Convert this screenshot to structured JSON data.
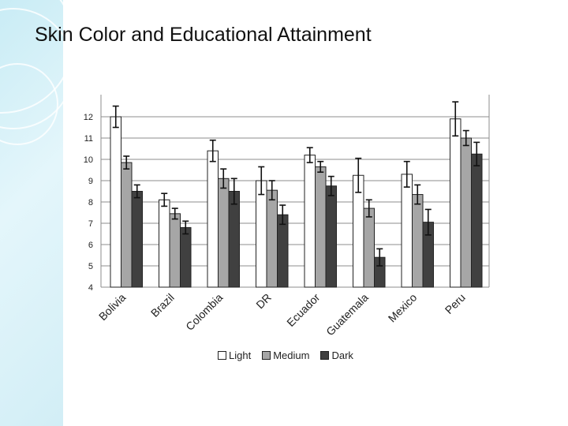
{
  "title": "Skin Color and Educational Attainment",
  "chart_data": {
    "type": "bar",
    "title": "",
    "xlabel": "",
    "ylabel": "",
    "ylim": [
      4,
      12
    ],
    "yticks": [
      "4",
      "5",
      "6",
      "7",
      "8",
      "9",
      "10",
      "11",
      "12"
    ],
    "grid": true,
    "error_bars": true,
    "legend_position": "bottom",
    "categories": [
      "Bolivia",
      "Brazil",
      "Colombia",
      "DR",
      "Ecuador",
      "Guatemala",
      "Mexico",
      "Peru"
    ],
    "series": [
      {
        "name": "Light",
        "color": "#ffffff",
        "values": [
          12.0,
          8.1,
          10.4,
          9.0,
          10.2,
          9.25,
          9.3,
          11.9
        ],
        "err": [
          0.5,
          0.3,
          0.5,
          0.65,
          0.35,
          0.8,
          0.6,
          0.8
        ]
      },
      {
        "name": "Medium",
        "color": "#a6a6a6",
        "values": [
          9.85,
          7.45,
          9.1,
          8.55,
          9.65,
          7.7,
          8.35,
          11.0
        ],
        "err": [
          0.3,
          0.25,
          0.45,
          0.45,
          0.25,
          0.4,
          0.45,
          0.35
        ]
      },
      {
        "name": "Dark",
        "color": "#404040",
        "values": [
          8.5,
          6.8,
          8.5,
          7.4,
          8.75,
          5.4,
          7.05,
          10.25
        ],
        "err": [
          0.3,
          0.3,
          0.6,
          0.45,
          0.45,
          0.4,
          0.6,
          0.55
        ]
      }
    ]
  }
}
